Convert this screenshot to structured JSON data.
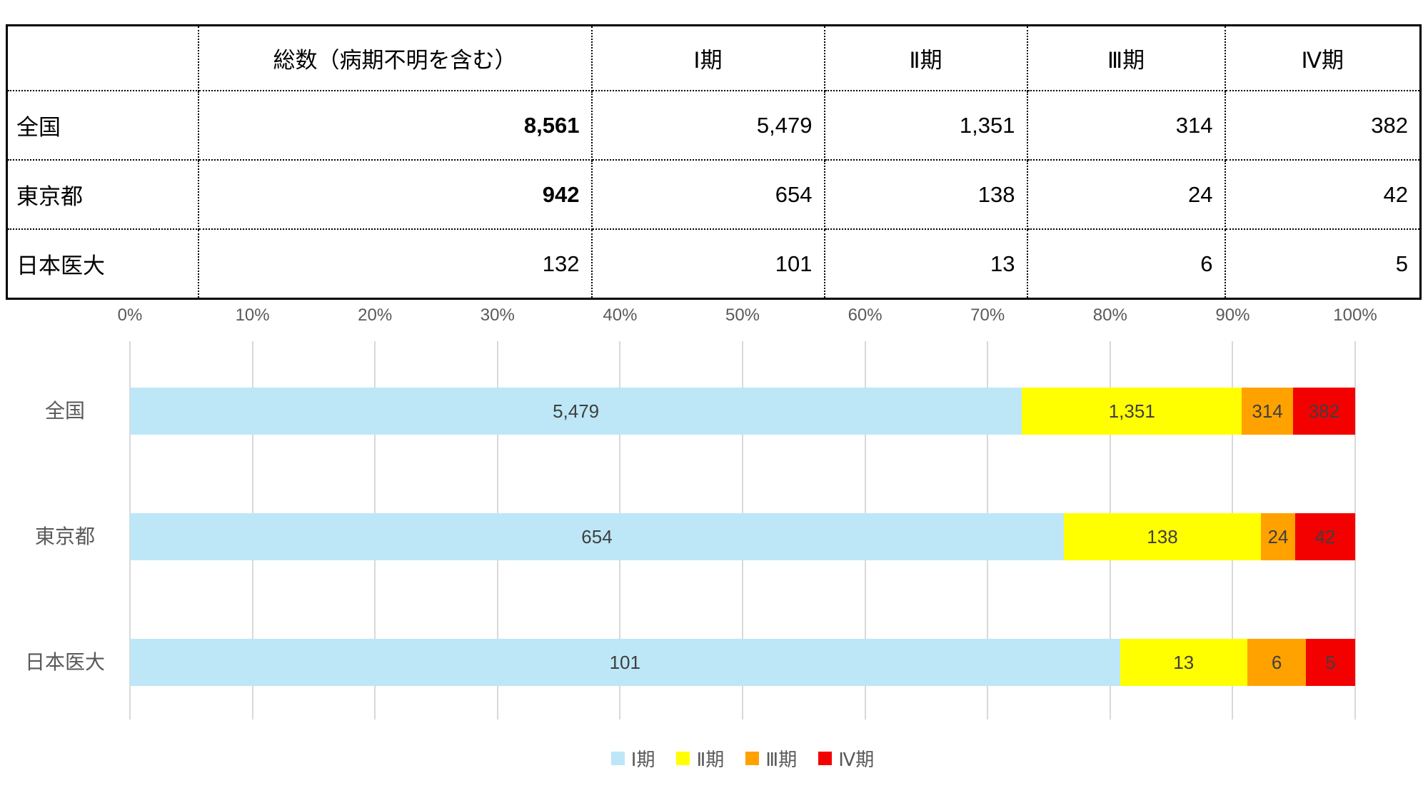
{
  "table": {
    "corner": "",
    "col_headers": [
      "",
      "総数（病期不明を含む）",
      "Ⅰ期",
      "Ⅱ期",
      "Ⅲ期",
      "Ⅳ期"
    ],
    "rows": [
      {
        "label": "全国",
        "values": [
          "8,561",
          "5,479",
          "1,351",
          "314",
          "382"
        ]
      },
      {
        "label": "東京都",
        "values": [
          "942",
          "654",
          "138",
          "24",
          "42"
        ]
      },
      {
        "label": "日本医大",
        "values": [
          "132",
          "101",
          "13",
          "6",
          "5"
        ]
      }
    ]
  },
  "chart_data": {
    "type": "bar",
    "orientation": "horizontal",
    "stacked_percent": true,
    "categories": [
      "全国",
      "東京都",
      "日本医大"
    ],
    "series": [
      {
        "name": "Ⅰ期",
        "color": "#BDE7F7",
        "values": [
          5479,
          654,
          101
        ],
        "labels": [
          "5,479",
          "654",
          "101"
        ]
      },
      {
        "name": "Ⅱ期",
        "color": "#FFFF00",
        "values": [
          1351,
          138,
          13
        ],
        "labels": [
          "1,351",
          "138",
          "13"
        ]
      },
      {
        "name": "Ⅲ期",
        "color": "#FFA200",
        "values": [
          314,
          24,
          6
        ],
        "labels": [
          "314",
          "24",
          "6"
        ]
      },
      {
        "name": "Ⅳ期",
        "color": "#F30000",
        "values": [
          382,
          42,
          5
        ],
        "labels": [
          "382",
          "42",
          "5"
        ]
      }
    ],
    "x_ticks": [
      "0%",
      "10%",
      "20%",
      "30%",
      "40%",
      "50%",
      "60%",
      "70%",
      "80%",
      "90%",
      "100%"
    ],
    "xlim": [
      0,
      100
    ],
    "grid": true,
    "legend_position": "bottom",
    "colors": {
      "grid": "#D9D9D9",
      "axis_text": "#595959",
      "bar_label": "#3F3F3F"
    }
  }
}
